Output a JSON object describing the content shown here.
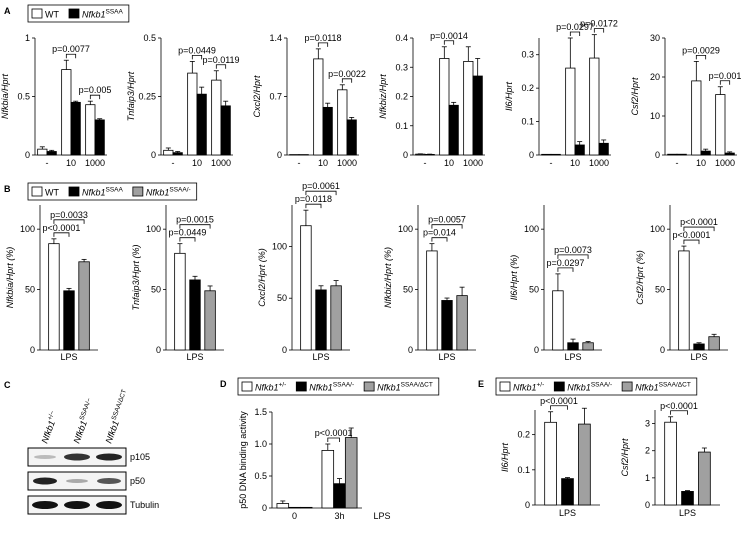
{
  "chart_data": [
    {
      "type": "bar",
      "ylabel": "Nfkbia/Hprt",
      "categories": [
        "-",
        "10",
        "1000"
      ],
      "ylim": [
        0,
        1
      ],
      "yticks": [
        0,
        0.5,
        1
      ],
      "series": [
        {
          "color": "#ffffff",
          "values": [
            0.05,
            0.73,
            0.43
          ],
          "errors": [
            0.02,
            0.08,
            0.03
          ]
        },
        {
          "color": "#000000",
          "values": [
            0.03,
            0.45,
            0.3
          ],
          "errors": [
            0.01,
            0.01,
            0.01
          ]
        }
      ],
      "annotations": [
        {
          "text": "p=0.0077",
          "category": 1,
          "from": 0,
          "to": 1
        },
        {
          "text": "p=0.005",
          "category": 2,
          "from": 0,
          "to": 1
        }
      ]
    },
    {
      "type": "bar",
      "ylabel": "Tnfaip3/Hprt",
      "categories": [
        "-",
        "10",
        "1000"
      ],
      "ylim": [
        0,
        0.5
      ],
      "yticks": [
        0,
        0.25,
        0.5
      ],
      "series": [
        {
          "color": "#ffffff",
          "values": [
            0.02,
            0.35,
            0.32
          ],
          "errors": [
            0.01,
            0.05,
            0.04
          ]
        },
        {
          "color": "#000000",
          "values": [
            0.01,
            0.26,
            0.21
          ],
          "errors": [
            0.005,
            0.03,
            0.02
          ]
        }
      ],
      "annotations": [
        {
          "text": "p=0.0449",
          "category": 1,
          "from": 0,
          "to": 1
        },
        {
          "text": "p=0.0119",
          "category": 2,
          "from": 0,
          "to": 1
        }
      ]
    },
    {
      "type": "bar",
      "ylabel": "Cxcl2/Hprt",
      "categories": [
        "-",
        "10",
        "1000"
      ],
      "ylim": [
        0,
        1.4
      ],
      "yticks": [
        0,
        0.7,
        1.4
      ],
      "series": [
        {
          "color": "#ffffff",
          "values": [
            0.005,
            1.15,
            0.78
          ],
          "errors": [
            0,
            0.12,
            0.06
          ]
        },
        {
          "color": "#000000",
          "values": [
            0.005,
            0.57,
            0.42
          ],
          "errors": [
            0,
            0.05,
            0.03
          ]
        }
      ],
      "annotations": [
        {
          "text": "p=0.0118",
          "category": 1,
          "from": 0,
          "to": 1
        },
        {
          "text": "p=0.0022",
          "category": 2,
          "from": 0,
          "to": 1
        }
      ]
    },
    {
      "type": "bar",
      "ylabel": "Nfkbiz/Hprt",
      "categories": [
        "-",
        "10",
        "1000"
      ],
      "ylim": [
        0,
        0.4
      ],
      "yticks": [
        0,
        0.1,
        0.2,
        0.3,
        0.4
      ],
      "series": [
        {
          "color": "#ffffff",
          "values": [
            0.003,
            0.33,
            0.32
          ],
          "errors": [
            0.001,
            0.04,
            0.05
          ]
        },
        {
          "color": "#000000",
          "values": [
            0.002,
            0.17,
            0.27
          ],
          "errors": [
            0.001,
            0.01,
            0.06
          ]
        }
      ],
      "annotations": [
        {
          "text": "p=0.0014",
          "category": 1,
          "from": 0,
          "to": 1
        }
      ]
    },
    {
      "type": "bar",
      "ylabel": "Il6/Hprt",
      "categories": [
        "-",
        "10",
        "1000"
      ],
      "ylim": [
        0,
        0.35
      ],
      "yticks": [
        0,
        0.1,
        0.2,
        0.3
      ],
      "series": [
        {
          "color": "#ffffff",
          "values": [
            0.002,
            0.26,
            0.29
          ],
          "errors": [
            0,
            0.09,
            0.07
          ]
        },
        {
          "color": "#000000",
          "values": [
            0.002,
            0.03,
            0.035
          ],
          "errors": [
            0,
            0.01,
            0.01
          ]
        }
      ],
      "annotations": [
        {
          "text": "p=0.0297",
          "category": 1,
          "from": 0,
          "to": 1
        },
        {
          "text": "p=0.0172",
          "category": 2,
          "from": 0,
          "to": 1
        }
      ]
    },
    {
      "type": "bar",
      "ylabel": "Csf2/Hprt",
      "categories": [
        "-",
        "10",
        "1000"
      ],
      "ylim": [
        0,
        30
      ],
      "yticks": [
        0,
        10,
        20,
        30
      ],
      "series": [
        {
          "color": "#ffffff",
          "values": [
            0.2,
            19,
            15.5
          ],
          "errors": [
            0,
            5,
            2
          ]
        },
        {
          "color": "#000000",
          "values": [
            0.2,
            1,
            0.5
          ],
          "errors": [
            0,
            0.5,
            0.3
          ]
        }
      ],
      "annotations": [
        {
          "text": "p=0.0029",
          "category": 1,
          "from": 0,
          "to": 1
        },
        {
          "text": "p=0.001",
          "category": 2,
          "from": 0,
          "to": 1
        }
      ]
    },
    {
      "type": "bar",
      "ylabel": "Nfkbia/Hprt (%)",
      "categories": [
        "LPS"
      ],
      "ylim": [
        0,
        120
      ],
      "yticks": [
        0,
        50,
        100
      ],
      "series": [
        {
          "color": "#ffffff",
          "values": [
            88
          ],
          "errors": [
            4
          ]
        },
        {
          "color": "#000000",
          "values": [
            49
          ],
          "errors": [
            2
          ]
        },
        {
          "color": "#a0a0a0",
          "values": [
            73
          ],
          "errors": [
            2
          ]
        }
      ],
      "annotations": [
        {
          "text": "p<0.0001",
          "category": 0,
          "from": 0,
          "to": 1
        },
        {
          "text": "p=0.0033",
          "category": 0,
          "from": 0,
          "to": 2
        }
      ]
    },
    {
      "type": "bar",
      "ylabel": "Tnfaip3/Hprt (%)",
      "categories": [
        "LPS"
      ],
      "ylim": [
        0,
        120
      ],
      "yticks": [
        0,
        50,
        100
      ],
      "series": [
        {
          "color": "#ffffff",
          "values": [
            80
          ],
          "errors": [
            8
          ]
        },
        {
          "color": "#000000",
          "values": [
            58
          ],
          "errors": [
            3
          ]
        },
        {
          "color": "#a0a0a0",
          "values": [
            49
          ],
          "errors": [
            4
          ]
        }
      ],
      "annotations": [
        {
          "text": "p=0.0449",
          "category": 0,
          "from": 0,
          "to": 1
        },
        {
          "text": "p=0.0015",
          "category": 0,
          "from": 0,
          "to": 2
        }
      ]
    },
    {
      "type": "bar",
      "ylabel": "Cxcl2/Hprt (%)",
      "categories": [
        "LPS"
      ],
      "ylim": [
        0,
        140
      ],
      "yticks": [
        0,
        50,
        100
      ],
      "series": [
        {
          "color": "#ffffff",
          "values": [
            120
          ],
          "errors": [
            15
          ]
        },
        {
          "color": "#000000",
          "values": [
            58
          ],
          "errors": [
            4
          ]
        },
        {
          "color": "#a0a0a0",
          "values": [
            62
          ],
          "errors": [
            5
          ]
        }
      ],
      "annotations": [
        {
          "text": "p=0.0118",
          "category": 0,
          "from": 0,
          "to": 1
        },
        {
          "text": "p=0.0061",
          "category": 0,
          "from": 0,
          "to": 2
        }
      ]
    },
    {
      "type": "bar",
      "ylabel": "Nfkbiz/Hprt (%)",
      "categories": [
        "LPS"
      ],
      "ylim": [
        0,
        120
      ],
      "yticks": [
        0,
        50,
        100
      ],
      "series": [
        {
          "color": "#ffffff",
          "values": [
            82
          ],
          "errors": [
            6
          ]
        },
        {
          "color": "#000000",
          "values": [
            41
          ],
          "errors": [
            2
          ]
        },
        {
          "color": "#a0a0a0",
          "values": [
            45
          ],
          "errors": [
            7
          ]
        }
      ],
      "annotations": [
        {
          "text": "p=0.014",
          "category": 0,
          "from": 0,
          "to": 1
        },
        {
          "text": "p=0.0057",
          "category": 0,
          "from": 0,
          "to": 2
        }
      ]
    },
    {
      "type": "bar",
      "ylabel": "Il6/Hprt (%)",
      "categories": [
        "LPS"
      ],
      "ylim": [
        0,
        120
      ],
      "yticks": [
        0,
        50,
        100
      ],
      "series": [
        {
          "color": "#ffffff",
          "values": [
            49
          ],
          "errors": [
            14
          ]
        },
        {
          "color": "#000000",
          "values": [
            6
          ],
          "errors": [
            3
          ]
        },
        {
          "color": "#a0a0a0",
          "values": [
            6
          ],
          "errors": [
            1
          ]
        }
      ],
      "annotations": [
        {
          "text": "p=0.0297",
          "category": 0,
          "from": 0,
          "to": 1
        },
        {
          "text": "p=0.0073",
          "category": 0,
          "from": 0,
          "to": 2
        }
      ]
    },
    {
      "type": "bar",
      "ylabel": "Csf2/Hprt (%)",
      "categories": [
        "LPS"
      ],
      "ylim": [
        0,
        120
      ],
      "yticks": [
        0,
        50,
        100
      ],
      "series": [
        {
          "color": "#ffffff",
          "values": [
            82
          ],
          "errors": [
            4
          ]
        },
        {
          "color": "#000000",
          "values": [
            5
          ],
          "errors": [
            1
          ]
        },
        {
          "color": "#a0a0a0",
          "values": [
            11
          ],
          "errors": [
            2
          ]
        }
      ],
      "annotations": [
        {
          "text": "p<0.0001",
          "category": 0,
          "from": 0,
          "to": 1
        },
        {
          "text": "p<0.0001",
          "category": 0,
          "from": 0,
          "to": 2
        }
      ]
    },
    {
      "type": "bar",
      "ylabel": "p50 DNA binding activity",
      "categories": [
        "0",
        "3h"
      ],
      "xlabel": "LPS",
      "ylim": [
        0,
        1.5
      ],
      "yticks": [
        0,
        0.5,
        {
          "value": 1,
          "label": "1.0"
        },
        1.5
      ],
      "series": [
        {
          "color": "#ffffff",
          "values": [
            0.07,
            0.9
          ],
          "errors": [
            0.04,
            0.1
          ]
        },
        {
          "color": "#000000",
          "values": [
            0.01,
            0.38
          ],
          "errors": [
            0,
            0.08
          ]
        },
        {
          "color": "#a0a0a0",
          "values": [
            0.01,
            1.1
          ],
          "errors": [
            0,
            0.15
          ]
        }
      ],
      "annotations": [
        {
          "text": "p<0.0001",
          "category": 1,
          "from": 0,
          "to": 1
        }
      ]
    },
    {
      "type": "bar",
      "ylabel": "Il6/Hprt",
      "categories": [
        "LPS"
      ],
      "ylim": [
        0,
        0.27
      ],
      "yticks": [
        0,
        0.1,
        0.2
      ],
      "series": [
        {
          "color": "#ffffff",
          "values": [
            0.235
          ],
          "errors": [
            0.03
          ]
        },
        {
          "color": "#000000",
          "values": [
            0.075
          ],
          "errors": [
            0.003
          ]
        },
        {
          "color": "#a0a0a0",
          "values": [
            0.23
          ],
          "errors": [
            0.045
          ]
        }
      ],
      "annotations": [
        {
          "text": "p<0.0001",
          "category": 0,
          "from": 0,
          "to": 1
        }
      ]
    },
    {
      "type": "bar",
      "ylabel": "Csf2/Hprt",
      "categories": [
        "LPS"
      ],
      "ylim": [
        0,
        3.5
      ],
      "yticks": [
        0,
        1,
        2,
        3
      ],
      "series": [
        {
          "color": "#ffffff",
          "values": [
            3.05
          ],
          "errors": [
            0.2
          ]
        },
        {
          "color": "#000000",
          "values": [
            0.5
          ],
          "errors": [
            0.03
          ]
        },
        {
          "color": "#a0a0a0",
          "values": [
            1.95
          ],
          "errors": [
            0.15
          ]
        }
      ],
      "annotations": [
        {
          "text": "p<0.0001",
          "category": 0,
          "from": 0,
          "to": 1
        }
      ]
    }
  ],
  "panels": [
    {
      "letter": "A",
      "legend": [
        {
          "label": "WT",
          "color": "#ffffff"
        },
        {
          "label": "Nfkb1",
          "sup": "SSAA",
          "color": "#000000"
        }
      ]
    },
    {
      "letter": "B",
      "legend": [
        {
          "label": "WT",
          "color": "#ffffff"
        },
        {
          "label": "Nfkb1",
          "sup": "SSAA",
          "color": "#000000"
        },
        {
          "label": "Nfkb1",
          "sup": "SSAA/-",
          "color": "#a0a0a0"
        }
      ]
    },
    {
      "letter": "D",
      "legend": [
        {
          "label": "Nfkb1",
          "sup": "+/-",
          "color": "#ffffff"
        },
        {
          "label": "Nfkb1",
          "sup": "SSAA/-",
          "color": "#000000"
        },
        {
          "label": "Nfkb1",
          "sup": "SSAA/ΔCT",
          "color": "#a0a0a0"
        }
      ]
    },
    {
      "letter": "E",
      "legend": [
        {
          "label": "Nfkb1",
          "sup": "+/-",
          "color": "#ffffff"
        },
        {
          "label": "Nfkb1",
          "sup": "SSAA/-",
          "color": "#000000"
        },
        {
          "label": "Nfkb1",
          "sup": "SSAA/ΔCT",
          "color": "#a0a0a0"
        }
      ]
    }
  ],
  "blot": {
    "letter": "C",
    "lanes": [
      {
        "label": "Nfkb1",
        "sup": "+/−"
      },
      {
        "label": "Nfkb1",
        "sup": "SSAA/−"
      },
      {
        "label": "Nfkb1",
        "sup": "SSAA/ΔCT"
      }
    ],
    "bands": [
      "p105",
      "p50",
      "Tubulin"
    ]
  }
}
